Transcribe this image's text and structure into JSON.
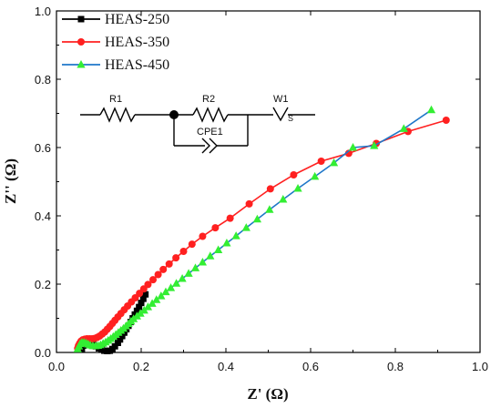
{
  "chart_data": {
    "type": "scatter",
    "title": "",
    "xlabel": "Z' (Ω)",
    "ylabel": "Z'' (Ω)",
    "xlim": [
      0.0,
      1.0
    ],
    "ylim": [
      0.0,
      1.0
    ],
    "xticks": [
      "0.0",
      "0.2",
      "0.4",
      "0.6",
      "0.8",
      "1.0"
    ],
    "yticks": [
      "0.0",
      "0.2",
      "0.4",
      "0.6",
      "0.8",
      "1.0"
    ],
    "grid": false,
    "legend_position": "top-left",
    "series": [
      {
        "name": "HEAS-250",
        "color": "#000000",
        "marker": "square",
        "x": [
          0.06,
          0.063,
          0.066,
          0.07,
          0.075,
          0.08,
          0.087,
          0.093,
          0.1,
          0.107,
          0.113,
          0.12,
          0.126,
          0.132,
          0.138,
          0.145,
          0.15,
          0.155,
          0.16,
          0.165,
          0.17,
          0.175,
          0.18,
          0.185,
          0.19,
          0.195,
          0.2,
          0.205,
          0.21
        ],
        "y": [
          0.01,
          0.02,
          0.027,
          0.03,
          0.032,
          0.03,
          0.025,
          0.018,
          0.012,
          0.008,
          0.005,
          0.004,
          0.005,
          0.01,
          0.018,
          0.028,
          0.038,
          0.048,
          0.058,
          0.068,
          0.078,
          0.089,
          0.1,
          0.111,
          0.122,
          0.133,
          0.145,
          0.157,
          0.17
        ]
      },
      {
        "name": "HEAS-350",
        "color": "#ff2020",
        "marker": "circle",
        "x": [
          0.05,
          0.052,
          0.055,
          0.058,
          0.062,
          0.067,
          0.072,
          0.078,
          0.084,
          0.09,
          0.096,
          0.102,
          0.108,
          0.114,
          0.12,
          0.126,
          0.132,
          0.138,
          0.145,
          0.152,
          0.16,
          0.168,
          0.177,
          0.186,
          0.196,
          0.206,
          0.216,
          0.228,
          0.24,
          0.252,
          0.266,
          0.282,
          0.3,
          0.32,
          0.345,
          0.375,
          0.41,
          0.455,
          0.505,
          0.56,
          0.625,
          0.69,
          0.755,
          0.83,
          0.92
        ],
        "y": [
          0.012,
          0.02,
          0.027,
          0.033,
          0.037,
          0.039,
          0.04,
          0.04,
          0.04,
          0.041,
          0.044,
          0.048,
          0.054,
          0.06,
          0.068,
          0.076,
          0.085,
          0.094,
          0.104,
          0.114,
          0.125,
          0.136,
          0.148,
          0.16,
          0.173,
          0.186,
          0.199,
          0.213,
          0.228,
          0.243,
          0.259,
          0.277,
          0.296,
          0.317,
          0.34,
          0.365,
          0.393,
          0.435,
          0.479,
          0.52,
          0.56,
          0.583,
          0.612,
          0.647,
          0.68
        ]
      },
      {
        "name": "HEAS-450",
        "color": "#1f77c9",
        "lineColor": "#1f77c9",
        "markerColor": "#33ee33",
        "marker": "triangle",
        "x": [
          0.05,
          0.053,
          0.056,
          0.06,
          0.065,
          0.07,
          0.075,
          0.08,
          0.086,
          0.092,
          0.098,
          0.104,
          0.11,
          0.116,
          0.122,
          0.128,
          0.134,
          0.14,
          0.146,
          0.152,
          0.158,
          0.164,
          0.17,
          0.176,
          0.182,
          0.19,
          0.198,
          0.207,
          0.216,
          0.226,
          0.236,
          0.247,
          0.258,
          0.27,
          0.283,
          0.297,
          0.312,
          0.328,
          0.345,
          0.363,
          0.382,
          0.402,
          0.424,
          0.448,
          0.474,
          0.503,
          0.535,
          0.57,
          0.61,
          0.655,
          0.7,
          0.75,
          0.82,
          0.885
        ],
        "y": [
          0.01,
          0.018,
          0.025,
          0.029,
          0.029,
          0.027,
          0.024,
          0.021,
          0.019,
          0.019,
          0.02,
          0.022,
          0.026,
          0.03,
          0.035,
          0.04,
          0.046,
          0.052,
          0.058,
          0.064,
          0.07,
          0.077,
          0.084,
          0.091,
          0.098,
          0.106,
          0.114,
          0.123,
          0.133,
          0.143,
          0.154,
          0.165,
          0.177,
          0.189,
          0.202,
          0.216,
          0.231,
          0.247,
          0.264,
          0.282,
          0.3,
          0.32,
          0.341,
          0.365,
          0.39,
          0.418,
          0.448,
          0.48,
          0.515,
          0.555,
          0.6,
          0.605,
          0.655,
          0.71
        ]
      }
    ]
  },
  "circuit": {
    "r1": "R1",
    "r2": "R2",
    "w1": "W1",
    "cpe1": "CPE1",
    "ws_sub": "S"
  }
}
